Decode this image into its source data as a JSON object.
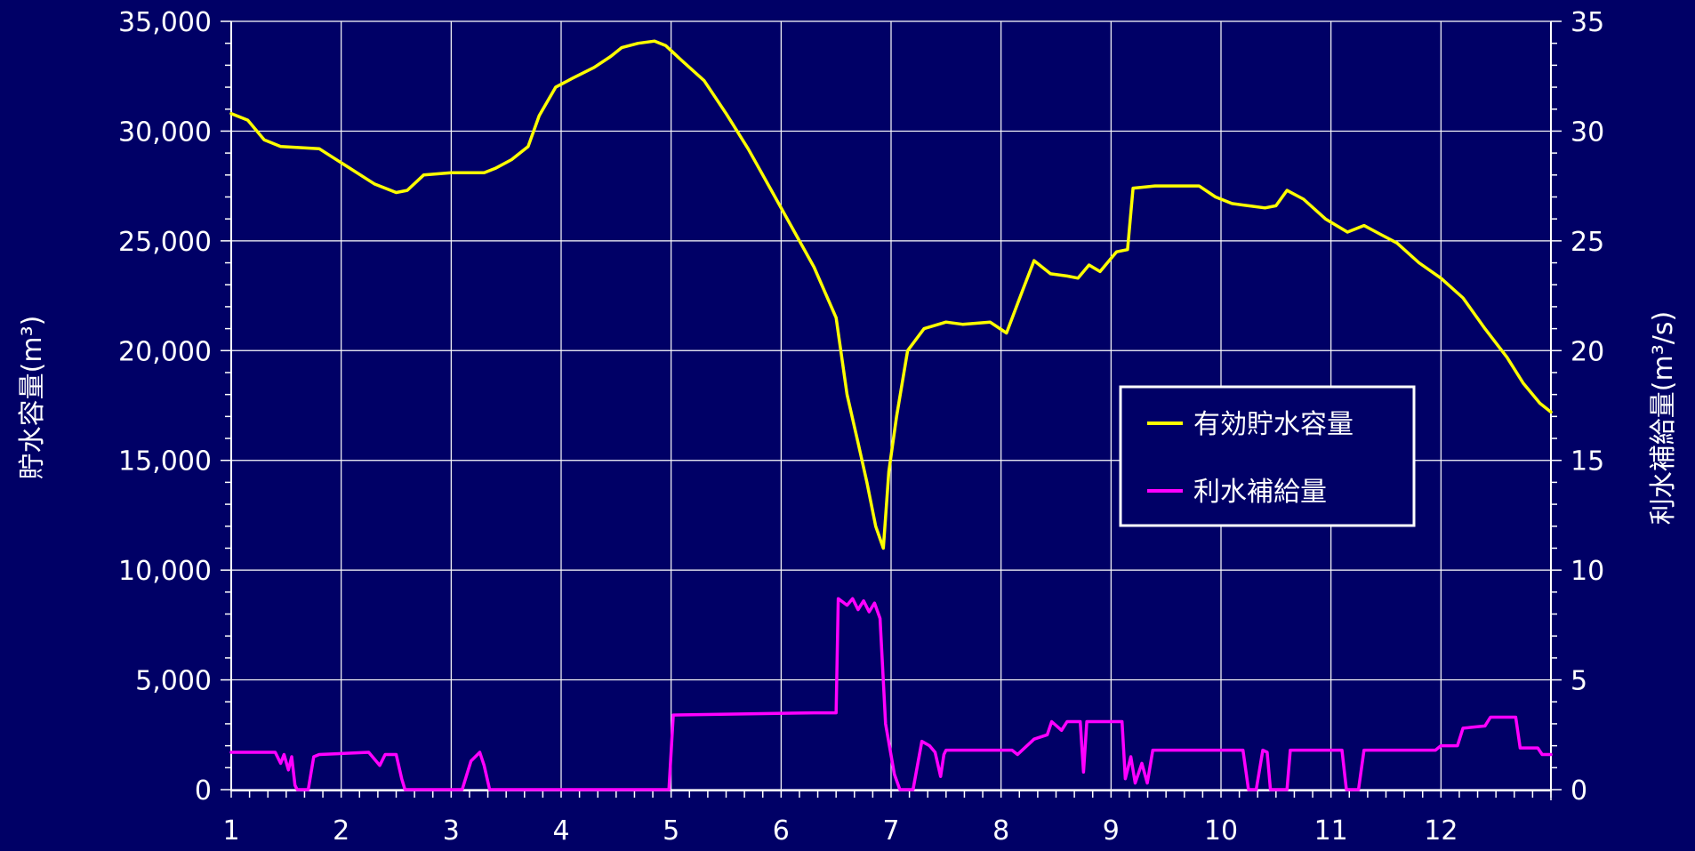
{
  "chart_data": {
    "type": "line",
    "title": "",
    "xlabel": "",
    "ylabel_left": "貯水容量(m³)",
    "ylabel_right": "利水補給量(m³/s)",
    "xlim": [
      1,
      13
    ],
    "ylim_left": [
      0,
      35000
    ],
    "ylim_right": [
      0,
      35
    ],
    "x_ticks": [
      "1",
      "2",
      "3",
      "4",
      "5",
      "6",
      "7",
      "8",
      "9",
      "10",
      "11",
      "12"
    ],
    "y_ticks_left": [
      "0",
      "5,000",
      "10,000",
      "15,000",
      "20,000",
      "25,000",
      "30,000",
      "35,000"
    ],
    "y_ticks_right": [
      "0",
      "5",
      "10",
      "15",
      "20",
      "25",
      "30",
      "35"
    ],
    "grid": true,
    "legend_placement": "right-center",
    "colors": {
      "background": "#000066",
      "grid": "#ffffff",
      "storage": "#ffff00",
      "supply": "#ff00ff"
    },
    "series": [
      {
        "name": "有効貯水容量",
        "axis": "left",
        "color": "#ffff00",
        "points": [
          [
            1.0,
            30800
          ],
          [
            1.15,
            30500
          ],
          [
            1.3,
            29600
          ],
          [
            1.45,
            29300
          ],
          [
            1.8,
            29200
          ],
          [
            2.05,
            28400
          ],
          [
            2.3,
            27600
          ],
          [
            2.5,
            27200
          ],
          [
            2.6,
            27300
          ],
          [
            2.75,
            28000
          ],
          [
            3.0,
            28100
          ],
          [
            3.3,
            28100
          ],
          [
            3.4,
            28300
          ],
          [
            3.55,
            28700
          ],
          [
            3.7,
            29300
          ],
          [
            3.8,
            30700
          ],
          [
            3.95,
            32000
          ],
          [
            4.1,
            32400
          ],
          [
            4.3,
            32900
          ],
          [
            4.45,
            33400
          ],
          [
            4.55,
            33800
          ],
          [
            4.7,
            34000
          ],
          [
            4.85,
            34100
          ],
          [
            4.95,
            33900
          ],
          [
            5.1,
            33200
          ],
          [
            5.3,
            32300
          ],
          [
            5.5,
            30800
          ],
          [
            5.7,
            29200
          ],
          [
            5.9,
            27400
          ],
          [
            6.1,
            25600
          ],
          [
            6.3,
            23800
          ],
          [
            6.5,
            21500
          ],
          [
            6.6,
            18000
          ],
          [
            6.7,
            15800
          ],
          [
            6.78,
            14000
          ],
          [
            6.86,
            12000
          ],
          [
            6.93,
            11000
          ],
          [
            6.98,
            14500
          ],
          [
            7.05,
            17000
          ],
          [
            7.15,
            20000
          ],
          [
            7.3,
            21000
          ],
          [
            7.5,
            21300
          ],
          [
            7.65,
            21200
          ],
          [
            7.9,
            21300
          ],
          [
            8.05,
            20800
          ],
          [
            8.2,
            22800
          ],
          [
            8.3,
            24100
          ],
          [
            8.45,
            23500
          ],
          [
            8.6,
            23400
          ],
          [
            8.7,
            23300
          ],
          [
            8.8,
            23900
          ],
          [
            8.9,
            23600
          ],
          [
            9.05,
            24500
          ],
          [
            9.15,
            24600
          ],
          [
            9.2,
            27400
          ],
          [
            9.4,
            27500
          ],
          [
            9.8,
            27500
          ],
          [
            9.95,
            27000
          ],
          [
            10.1,
            26700
          ],
          [
            10.25,
            26600
          ],
          [
            10.4,
            26500
          ],
          [
            10.5,
            26600
          ],
          [
            10.6,
            27300
          ],
          [
            10.75,
            26900
          ],
          [
            10.95,
            26000
          ],
          [
            11.15,
            25400
          ],
          [
            11.3,
            25700
          ],
          [
            11.45,
            25300
          ],
          [
            11.6,
            24900
          ],
          [
            11.8,
            24000
          ],
          [
            12.0,
            23300
          ],
          [
            12.2,
            22400
          ],
          [
            12.4,
            21000
          ],
          [
            12.6,
            19700
          ],
          [
            12.75,
            18500
          ],
          [
            12.9,
            17600
          ],
          [
            13.0,
            17200
          ]
        ]
      },
      {
        "name": "利水補給量",
        "axis": "right",
        "color": "#ff00ff",
        "points": [
          [
            1.0,
            1.7
          ],
          [
            1.4,
            1.7
          ],
          [
            1.45,
            1.2
          ],
          [
            1.48,
            1.6
          ],
          [
            1.52,
            0.9
          ],
          [
            1.55,
            1.5
          ],
          [
            1.58,
            0.2
          ],
          [
            1.6,
            0
          ],
          [
            1.7,
            0
          ],
          [
            1.75,
            1.5
          ],
          [
            1.8,
            1.6
          ],
          [
            2.25,
            1.7
          ],
          [
            2.35,
            1.1
          ],
          [
            2.4,
            1.6
          ],
          [
            2.5,
            1.6
          ],
          [
            2.55,
            0.5
          ],
          [
            2.58,
            0
          ],
          [
            3.1,
            0
          ],
          [
            3.18,
            1.3
          ],
          [
            3.26,
            1.7
          ],
          [
            3.3,
            1.1
          ],
          [
            3.35,
            0
          ],
          [
            4.98,
            0
          ],
          [
            5.02,
            3.4
          ],
          [
            6.3,
            3.5
          ],
          [
            6.5,
            3.5
          ],
          [
            6.52,
            8.7
          ],
          [
            6.6,
            8.4
          ],
          [
            6.65,
            8.7
          ],
          [
            6.7,
            8.2
          ],
          [
            6.75,
            8.6
          ],
          [
            6.8,
            8.1
          ],
          [
            6.85,
            8.5
          ],
          [
            6.9,
            7.8
          ],
          [
            6.95,
            3.0
          ],
          [
            7.03,
            0.7
          ],
          [
            7.08,
            0
          ],
          [
            7.2,
            0
          ],
          [
            7.28,
            2.2
          ],
          [
            7.35,
            2.0
          ],
          [
            7.4,
            1.7
          ],
          [
            7.45,
            0.6
          ],
          [
            7.48,
            1.6
          ],
          [
            7.5,
            1.8
          ],
          [
            8.1,
            1.8
          ],
          [
            8.15,
            1.6
          ],
          [
            8.3,
            2.3
          ],
          [
            8.42,
            2.5
          ],
          [
            8.46,
            3.1
          ],
          [
            8.55,
            2.7
          ],
          [
            8.6,
            3.1
          ],
          [
            8.72,
            3.1
          ],
          [
            8.75,
            0.8
          ],
          [
            8.78,
            3.1
          ],
          [
            9.1,
            3.1
          ],
          [
            9.13,
            0.5
          ],
          [
            9.18,
            1.5
          ],
          [
            9.22,
            0.3
          ],
          [
            9.28,
            1.2
          ],
          [
            9.33,
            0.3
          ],
          [
            9.38,
            1.8
          ],
          [
            9.6,
            1.8
          ],
          [
            10.2,
            1.8
          ],
          [
            10.25,
            0
          ],
          [
            10.32,
            0
          ],
          [
            10.38,
            1.8
          ],
          [
            10.42,
            1.7
          ],
          [
            10.45,
            0
          ],
          [
            10.6,
            0
          ],
          [
            10.63,
            1.8
          ],
          [
            11.1,
            1.8
          ],
          [
            11.14,
            0
          ],
          [
            11.25,
            0
          ],
          [
            11.3,
            1.8
          ],
          [
            11.95,
            1.8
          ],
          [
            12.0,
            2.0
          ],
          [
            12.15,
            2.0
          ],
          [
            12.2,
            2.8
          ],
          [
            12.4,
            2.9
          ],
          [
            12.45,
            3.3
          ],
          [
            12.68,
            3.3
          ],
          [
            12.72,
            1.9
          ],
          [
            12.88,
            1.9
          ],
          [
            12.92,
            1.6
          ],
          [
            13.0,
            1.6
          ]
        ]
      }
    ]
  }
}
